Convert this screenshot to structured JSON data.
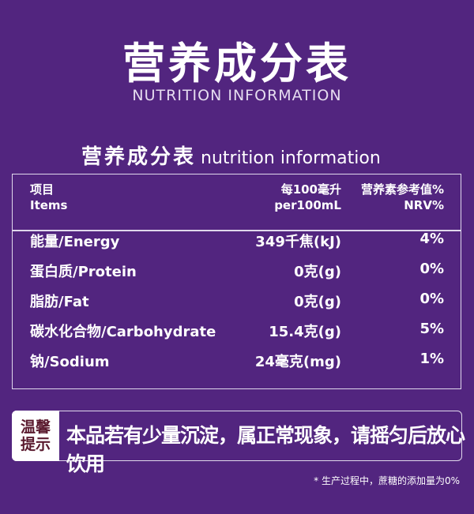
{
  "title_cn": "营养成分表",
  "title_en": "NUTRITION INFORMATION",
  "subtitle_cn": "营养成分表",
  "subtitle_en": "nutrition information",
  "table": {
    "headers": {
      "item_cn": "项目",
      "item_en": "Items",
      "per_cn": "每100毫升",
      "per_en": "per100mL",
      "nrv_cn": "营养素参考值%",
      "nrv_en": "NRV%"
    },
    "rows": [
      {
        "name": "能量/Energy",
        "value": "349千焦(kJ)",
        "nrv": "4%"
      },
      {
        "name": "蛋白质/Protein",
        "value": "0克(g)",
        "nrv": "0%"
      },
      {
        "name": "脂肪/Fat",
        "value": "0克(g)",
        "nrv": "0%"
      },
      {
        "name": "碳水化合物/Carbohydrate",
        "value": "15.4克(g)",
        "nrv": "5%"
      },
      {
        "name": "钠/Sodium",
        "value": "24毫克(mg)",
        "nrv": "1%"
      }
    ]
  },
  "tip": {
    "label_line1": "温馨",
    "label_line2": "提示",
    "text": "本品若有少量沉淀，属正常现象，请摇匀后放心饮用"
  },
  "note": "* 生产过程中，蔗糖的添加量为0%",
  "colors": {
    "background": "#52257f",
    "tip_label_text": "#5a1a2e"
  }
}
